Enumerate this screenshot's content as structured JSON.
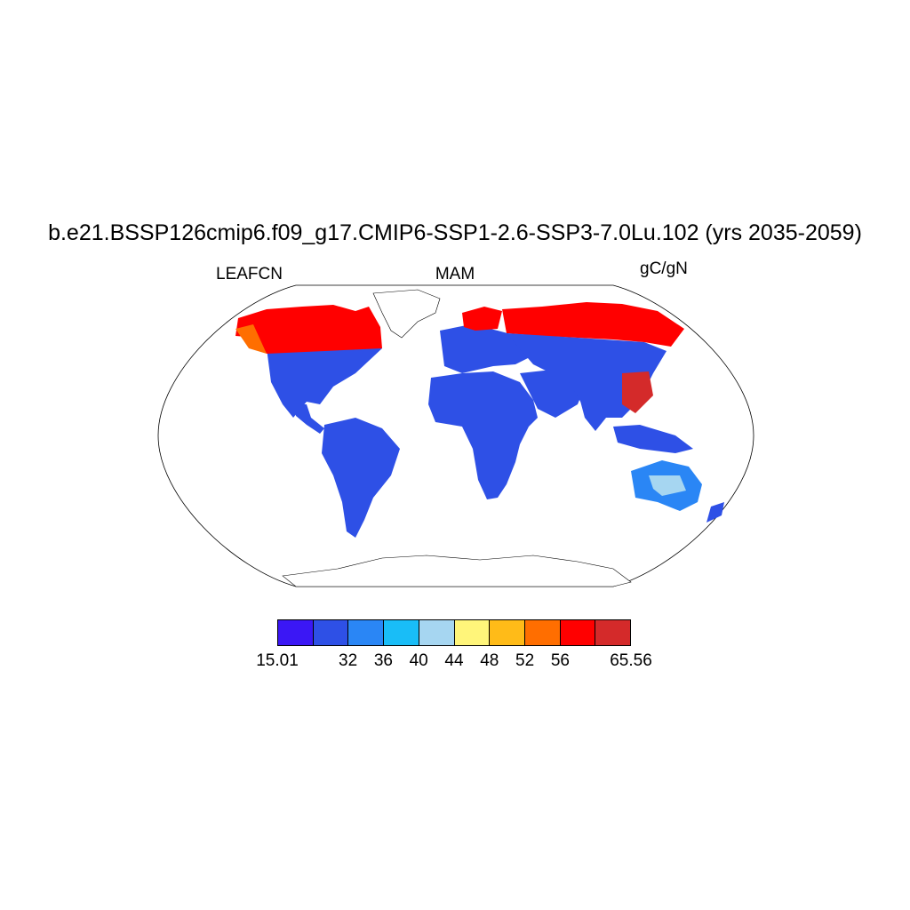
{
  "figure": {
    "title": "b.e21.BSSP126cmip6.f09_g17.CMIP6-SSP1-2.6-SSP3-7.0Lu.102 (yrs 2035-2059)",
    "variable": "LEAFCN",
    "season": "MAM",
    "units": "gC/gN",
    "projection": "Robinson",
    "background": "#ffffff"
  },
  "colorbar": {
    "colors": [
      "#3b17f5",
      "#2e50e6",
      "#2a86f5",
      "#19bdf7",
      "#a6d6f1",
      "#fff57a",
      "#ffbb18",
      "#ff6e00",
      "#ff0000",
      "#d42a2a"
    ],
    "labels": [
      {
        "text": "15.01",
        "boundary": 0
      },
      {
        "text": "32",
        "boundary": 2
      },
      {
        "text": "36",
        "boundary": 3
      },
      {
        "text": "40",
        "boundary": 4
      },
      {
        "text": "44",
        "boundary": 5
      },
      {
        "text": "48",
        "boundary": 6
      },
      {
        "text": "52",
        "boundary": 7
      },
      {
        "text": "56",
        "boundary": 8
      },
      {
        "text": "65.56",
        "boundary": 10
      }
    ]
  },
  "regions": [
    {
      "name": "north-america-boreal",
      "color": "#ff0000"
    },
    {
      "name": "north-america-temperate",
      "color": "#2e50e6"
    },
    {
      "name": "south-america",
      "color": "#2e50e6"
    },
    {
      "name": "europe",
      "color": "#2e50e6"
    },
    {
      "name": "africa",
      "color": "#2e50e6"
    },
    {
      "name": "asia-boreal",
      "color": "#ff0000"
    },
    {
      "name": "asia-temperate",
      "color": "#2e50e6"
    },
    {
      "name": "australia",
      "color": "#2a86f5"
    },
    {
      "name": "antarctica",
      "color": "#ffffff"
    },
    {
      "name": "greenland",
      "color": "#ffffff"
    }
  ]
}
